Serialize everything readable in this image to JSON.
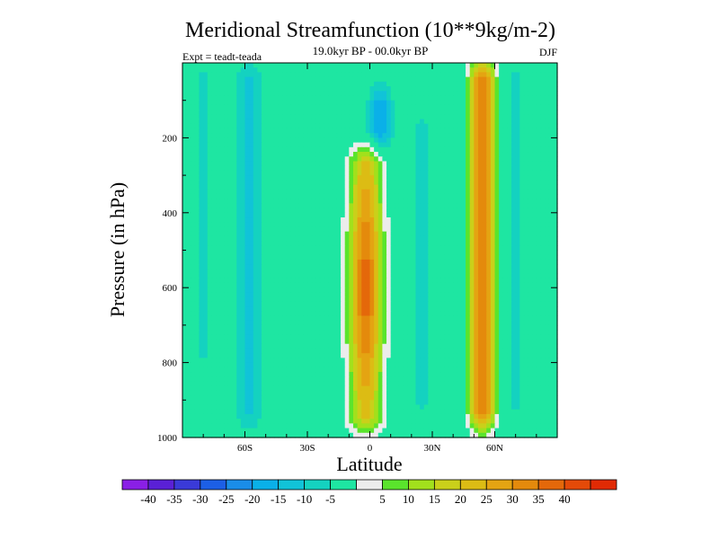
{
  "chart_data": {
    "type": "heatmap",
    "title": "Meridional Streamfunction (10**9kg/m-2)",
    "subtitle": "19.0kyr BP - 00.0kyr BP",
    "left_note": "Expt = teadt-teada",
    "right_note": "DJF",
    "xlabel": "Latitude",
    "ylabel": "Pressure (in hPa)",
    "xlim": [
      -90,
      90
    ],
    "ylim": [
      0,
      1000
    ],
    "y_reversed": true,
    "x_ticks": [
      {
        "value": -60,
        "label": "60S"
      },
      {
        "value": -30,
        "label": "30S"
      },
      {
        "value": 0,
        "label": "0"
      },
      {
        "value": 30,
        "label": "30N"
      },
      {
        "value": 60,
        "label": "60N"
      }
    ],
    "y_ticks": [
      {
        "value": 200,
        "label": "200"
      },
      {
        "value": 400,
        "label": "400"
      },
      {
        "value": 600,
        "label": "600"
      },
      {
        "value": 800,
        "label": "800"
      },
      {
        "value": 1000,
        "label": "1000"
      }
    ],
    "colorbar": {
      "colors": [
        "#8a1fe6",
        "#5a20d6",
        "#3a3ad8",
        "#1c5fe6",
        "#1a8de8",
        "#0ab0e8",
        "#11c3d8",
        "#14d2c0",
        "#1ee6a2",
        "#ececec",
        "#5ae42c",
        "#a2e01c",
        "#cad01a",
        "#dcbc14",
        "#e4a412",
        "#e48a0c",
        "#e4680a",
        "#e44a08",
        "#e02a04"
      ],
      "labels": [
        "-40",
        "-35",
        "-30",
        "-25",
        "-20",
        "-15",
        "-10",
        "-5",
        "5",
        "10",
        "15",
        "20",
        "25",
        "30",
        "35",
        "40"
      ]
    },
    "features": [
      {
        "name": "cell-eq",
        "lat_center": -2,
        "lat_width": 18,
        "p_top": 230,
        "p_bottom": 985,
        "peak": 42
      },
      {
        "name": "cell-55n",
        "lat_center": 54,
        "lat_width": 14,
        "p_top": 0,
        "p_bottom": 975,
        "peak": 40
      },
      {
        "name": "cell-sh-mid",
        "lat_center": -58,
        "lat_width": 16,
        "p_top": 10,
        "p_bottom": 970,
        "peak": -12
      },
      {
        "name": "cell-sh-outer",
        "lat_center": -80,
        "lat_width": 5,
        "p_top": 10,
        "p_bottom": 800,
        "peak": -9
      },
      {
        "name": "cell-upper-neg",
        "lat_center": 5,
        "lat_width": 13,
        "p_top": 70,
        "p_bottom": 230,
        "peak": -18
      },
      {
        "name": "cell-sub-neg",
        "lat_center": 25,
        "lat_width": 9,
        "p_top": 150,
        "p_bottom": 930,
        "peak": -9
      },
      {
        "name": "cell-polar-n",
        "lat_center": 70,
        "lat_width": 4,
        "p_top": 0,
        "p_bottom": 950,
        "peak": -8
      }
    ]
  }
}
